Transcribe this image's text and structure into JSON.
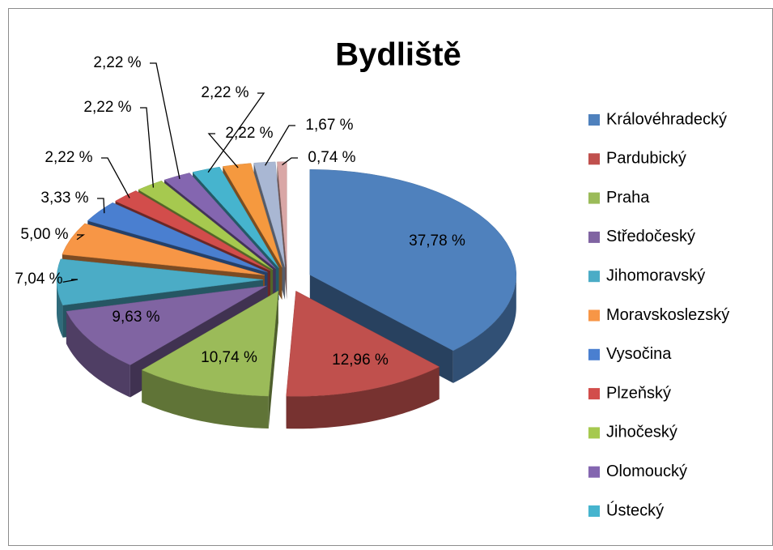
{
  "chart_data": {
    "type": "pie",
    "title": "Bydliště",
    "categories": [
      "Královéhradecký",
      "Pardubický",
      "Praha",
      "Středočeský",
      "Jihomoravský",
      "Moravskoslezský",
      "Vysočina",
      "Plzeňský",
      "Jihočeský",
      "Olomoucký",
      "Ústecký",
      null,
      null,
      null
    ],
    "values": [
      37.78,
      12.96,
      10.74,
      9.63,
      7.04,
      5.0,
      3.33,
      2.22,
      2.22,
      2.22,
      2.22,
      2.22,
      1.67,
      0.74
    ],
    "value_labels": [
      "37,78 %",
      "12,96 %",
      "10,74 %",
      "9,63 %",
      "7,04 %",
      "5,00 %",
      "3,33 %",
      "2,22 %",
      "2,22 %",
      "2,22 %",
      "2,22 %",
      "2,22 %",
      "1,67 %",
      "0,74 %"
    ],
    "colors": [
      "#4f81bd",
      "#c0504d",
      "#9bbb59",
      "#8064a2",
      "#4bacc6",
      "#f79646",
      "#4a7fd0",
      "#d24d4b",
      "#a6c94f",
      "#8466b0",
      "#46b4ce",
      "#f5993f",
      "#a9b7d3",
      "#d9a7a6"
    ],
    "legend": "right"
  }
}
